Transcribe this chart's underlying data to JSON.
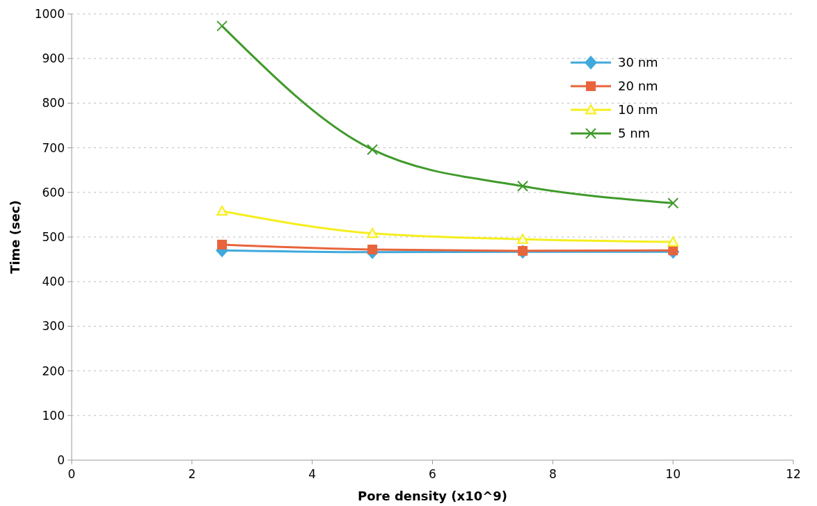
{
  "chart_data": {
    "type": "line",
    "xlabel": "Pore density (x10^9)",
    "ylabel": "Time (sec)",
    "x": [
      2.5,
      5,
      7.5,
      10
    ],
    "series": [
      {
        "name": "30 nm",
        "color": "#3fa9dc",
        "marker": "diamond",
        "values": [
          470,
          466,
          467,
          467
        ]
      },
      {
        "name": "20 nm",
        "color": "#e8643c",
        "marker": "square",
        "values": [
          483,
          472,
          469,
          470
        ]
      },
      {
        "name": "10 nm",
        "color": "#f5ee1c",
        "marker": "triangle",
        "values": [
          558,
          508,
          495,
          489
        ]
      },
      {
        "name": "5 nm",
        "color": "#3f9a2a",
        "marker": "cross",
        "values": [
          973,
          696,
          614,
          576
        ]
      }
    ],
    "xlim": [
      0,
      12
    ],
    "xticks": [
      0,
      2,
      4,
      6,
      8,
      10,
      12
    ],
    "ylim": [
      0,
      1000
    ],
    "yticks": [
      0,
      100,
      200,
      300,
      400,
      500,
      600,
      700,
      800,
      900,
      1000
    ],
    "grid": "y",
    "legend": "top right",
    "line_style": "solid"
  }
}
